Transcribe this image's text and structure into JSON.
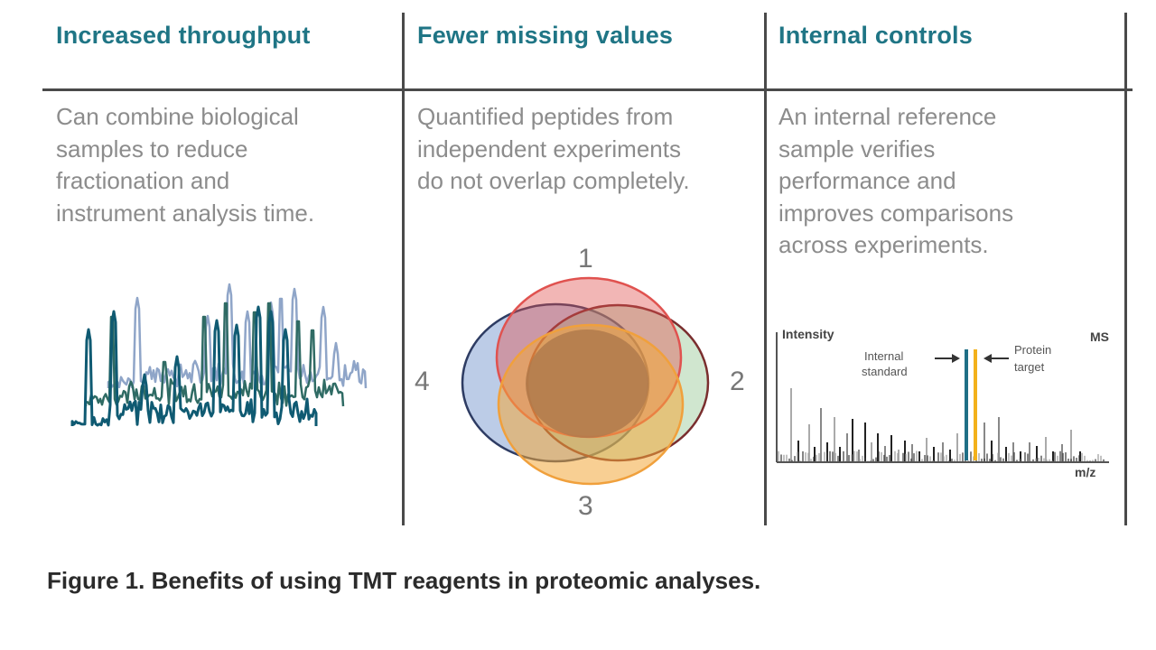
{
  "columns": [
    {
      "title": "Increased throughput",
      "lines": [
        "Can combine biological",
        "samples to reduce",
        "fractionation and",
        "instrument analysis time."
      ]
    },
    {
      "title": "Fewer missing values",
      "lines": [
        "Quantified peptides from",
        "independent experiments",
        "do not overlap completely."
      ]
    },
    {
      "title": "Internal controls",
      "lines": [
        "An internal reference",
        "sample verifies",
        "performance and",
        "improves comparisons",
        "across experiments."
      ]
    }
  ],
  "venn": {
    "labels": [
      "1",
      "2",
      "3",
      "4"
    ],
    "colors": {
      "1": "#e0524f",
      "2": "#8fc48d",
      "3": "#f0a03c",
      "4": "#5f86c5",
      "overlap": "#b07a4c"
    }
  },
  "ms_plot": {
    "y_label": "Intensity",
    "x_label": "m/z",
    "corner_label": "MS",
    "annotation_left": [
      "Internal",
      "standard"
    ],
    "annotation_right": [
      "Protein",
      "target"
    ],
    "colors": {
      "internal_standard": "#1f6f86",
      "protein_target": "#f3b11b"
    }
  },
  "chromatogram": {
    "colors": [
      "#8fa5c8",
      "#2f6b64",
      "#0f5a72"
    ]
  },
  "caption": "Figure 1. Benefits of using TMT reagents in proteomic analyses."
}
